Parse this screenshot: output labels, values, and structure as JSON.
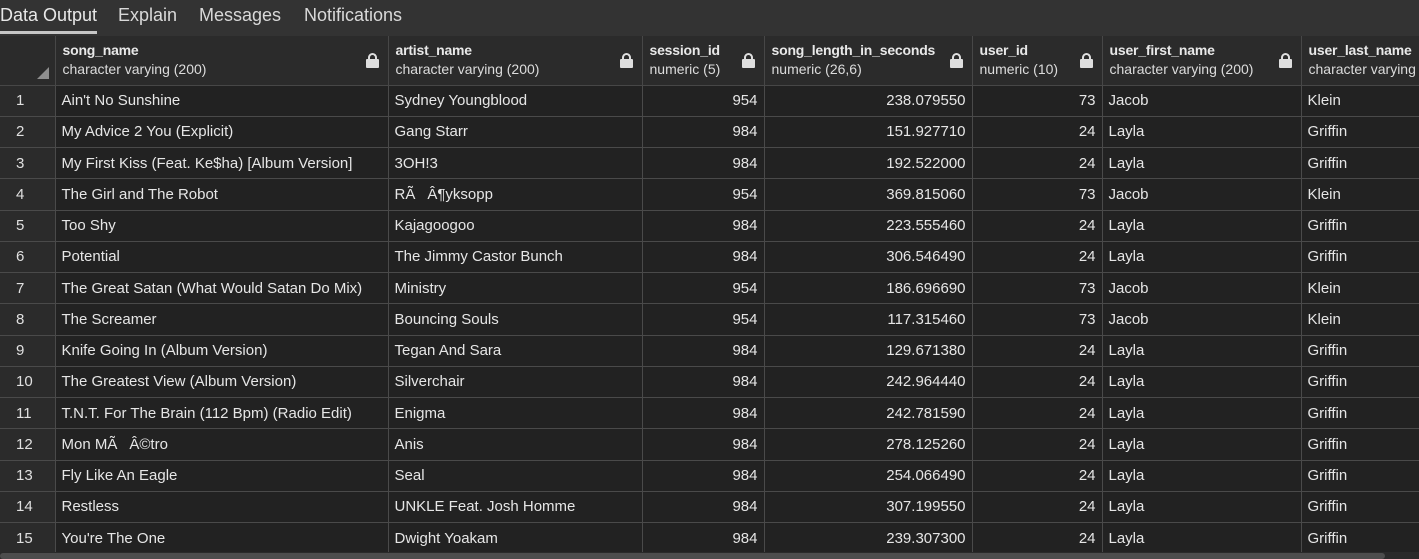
{
  "tabs": [
    {
      "label": "Data Output",
      "active": true
    },
    {
      "label": "Explain",
      "active": false
    },
    {
      "label": "Messages",
      "active": false
    },
    {
      "label": "Notifications",
      "active": false
    }
  ],
  "columns": [
    {
      "name": "song_name",
      "type": "character varying (200)",
      "align": "left"
    },
    {
      "name": "artist_name",
      "type": "character varying (200)",
      "align": "left"
    },
    {
      "name": "session_id",
      "type": "numeric (5)",
      "align": "right"
    },
    {
      "name": "song_length_in_seconds",
      "type": "numeric (26,6)",
      "align": "right"
    },
    {
      "name": "user_id",
      "type": "numeric (10)",
      "align": "right"
    },
    {
      "name": "user_first_name",
      "type": "character varying (200)",
      "align": "left"
    },
    {
      "name": "user_last_name",
      "type": "character varying",
      "align": "left"
    }
  ],
  "rows": [
    {
      "num": "1",
      "cells": [
        "Ain't No Sunshine",
        "Sydney Youngblood",
        "954",
        "238.079550",
        "73",
        "Jacob",
        "Klein"
      ]
    },
    {
      "num": "2",
      "cells": [
        "My Advice 2 You (Explicit)",
        "Gang Starr",
        "984",
        "151.927710",
        "24",
        "Layla",
        "Griffin"
      ]
    },
    {
      "num": "3",
      "cells": [
        "My First Kiss (Feat. Ke$ha) [Album Version]",
        "3OH!3",
        "984",
        "192.522000",
        "24",
        "Layla",
        "Griffin"
      ]
    },
    {
      "num": "4",
      "cells": [
        "The Girl and The Robot",
        "RÃÂ¶yksopp",
        "954",
        "369.815060",
        "73",
        "Jacob",
        "Klein"
      ]
    },
    {
      "num": "5",
      "cells": [
        "Too Shy",
        "Kajagoogoo",
        "984",
        "223.555460",
        "24",
        "Layla",
        "Griffin"
      ]
    },
    {
      "num": "6",
      "cells": [
        "Potential",
        "The Jimmy Castor Bunch",
        "984",
        "306.546490",
        "24",
        "Layla",
        "Griffin"
      ]
    },
    {
      "num": "7",
      "cells": [
        "The Great Satan (What Would Satan Do Mix)",
        "Ministry",
        "954",
        "186.696690",
        "73",
        "Jacob",
        "Klein"
      ]
    },
    {
      "num": "8",
      "cells": [
        "The Screamer",
        "Bouncing Souls",
        "954",
        "117.315460",
        "73",
        "Jacob",
        "Klein"
      ]
    },
    {
      "num": "9",
      "cells": [
        "Knife Going In (Album Version)",
        "Tegan And Sara",
        "984",
        "129.671380",
        "24",
        "Layla",
        "Griffin"
      ]
    },
    {
      "num": "10",
      "cells": [
        "The Greatest View (Album Version)",
        "Silverchair",
        "984",
        "242.964440",
        "24",
        "Layla",
        "Griffin"
      ]
    },
    {
      "num": "11",
      "cells": [
        "T.N.T. For The Brain (112 Bpm) (Radio Edit)",
        "Enigma",
        "984",
        "242.781590",
        "24",
        "Layla",
        "Griffin"
      ]
    },
    {
      "num": "12",
      "cells": [
        "Mon MÃÂ©tro",
        "Anis",
        "984",
        "278.125260",
        "24",
        "Layla",
        "Griffin"
      ]
    },
    {
      "num": "13",
      "cells": [
        "Fly Like An Eagle",
        "Seal",
        "984",
        "254.066490",
        "24",
        "Layla",
        "Griffin"
      ]
    },
    {
      "num": "14",
      "cells": [
        "Restless",
        "UNKLE Feat. Josh Homme",
        "984",
        "307.199550",
        "24",
        "Layla",
        "Griffin"
      ]
    },
    {
      "num": "15",
      "cells": [
        "You're The One",
        "Dwight Yoakam",
        "984",
        "239.307300",
        "24",
        "Layla",
        "Griffin"
      ]
    }
  ],
  "icons": {
    "column_lock": "lock-icon",
    "corner": "select-all-corner-icon"
  },
  "colors": {
    "background": "#222222",
    "header": "#2b2b2b",
    "tabbar": "#333333",
    "border": "#4a4a4a",
    "text": "#e6e6e6"
  }
}
